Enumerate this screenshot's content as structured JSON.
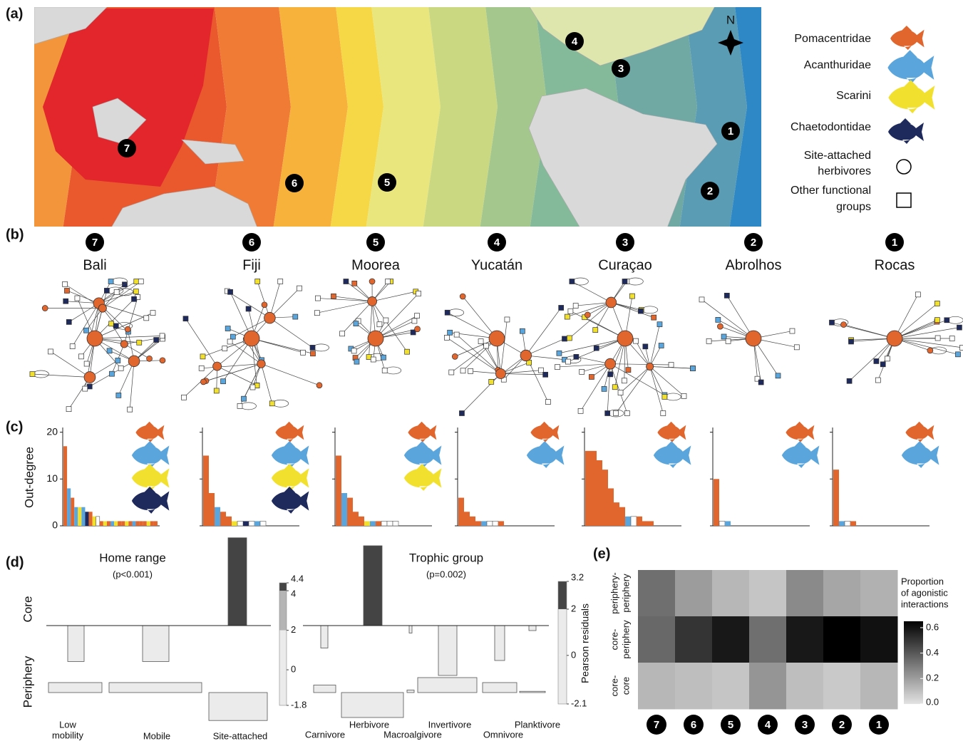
{
  "panel_labels": [
    "(a)",
    "(b)",
    "(c)",
    "(d)",
    "(e)"
  ],
  "map": {
    "sites": [
      "7",
      "6",
      "5",
      "4",
      "3",
      "2",
      "1"
    ],
    "north": "N"
  },
  "legend": {
    "items": [
      [
        "Pomacentridae"
      ],
      [
        "Acanthuridae"
      ],
      [
        "Scarini"
      ],
      [
        "Chaetodontidae"
      ],
      [
        "Site-attached",
        "herbivores"
      ],
      [
        "Other functional",
        "groups"
      ]
    ]
  },
  "networks": [
    {
      "site": "7",
      "name": "Bali"
    },
    {
      "site": "6",
      "name": "Fiji"
    },
    {
      "site": "5",
      "name": "Moorea"
    },
    {
      "site": "4",
      "name": "Yucatán"
    },
    {
      "site": "3",
      "name": "Curaçao"
    },
    {
      "site": "2",
      "name": "Abrolhos"
    },
    {
      "site": "1",
      "name": "Rocas"
    }
  ],
  "chart_data": [
    {
      "type": "bar",
      "ylabel": "Out-degree",
      "ylim": [
        0,
        21
      ],
      "yticks": [
        0,
        10,
        20
      ],
      "show_tick_labels": true,
      "values": [
        17,
        8,
        6,
        4,
        4,
        4,
        3,
        3,
        2,
        2,
        1,
        1,
        1,
        1,
        1,
        1,
        1,
        1,
        1,
        1,
        1,
        1,
        1,
        1,
        1,
        1
      ],
      "colors": [
        "#e0662e",
        "#5aa6dc",
        "#e0662e",
        "#5aa6dc",
        "#f2e02e",
        "#5aa6dc",
        "#1f2a5c",
        "#e0662e",
        "#f2e02e",
        "#ffffff",
        "#e0662e",
        "#f2e02e",
        "#e0662e",
        "#5aa6dc",
        "#f2e02e",
        "#e0662e",
        "#e0662e",
        "#f2e02e",
        "#e0662e",
        "#5aa6dc",
        "#e0662e",
        "#e0662e",
        "#e0662e",
        "#f2e02e",
        "#e0662e",
        "#e0662e"
      ]
    },
    {
      "type": "bar",
      "ylim": [
        0,
        21
      ],
      "yticks": [
        0,
        10,
        20
      ],
      "show_tick_labels": false,
      "values": [
        15,
        7,
        4,
        3,
        2,
        1,
        1,
        1,
        1,
        1,
        1
      ],
      "colors": [
        "#e0662e",
        "#e0662e",
        "#5aa6dc",
        "#e0662e",
        "#e0662e",
        "#f2e02e",
        "#ffffff",
        "#1f2a5c",
        "#ffffff",
        "#5aa6dc",
        "#ffffff"
      ]
    },
    {
      "type": "bar",
      "ylim": [
        0,
        21
      ],
      "yticks": [
        0,
        10,
        20
      ],
      "show_tick_labels": false,
      "values": [
        15,
        7,
        6,
        3,
        2,
        1,
        1,
        1,
        1,
        1,
        1
      ],
      "colors": [
        "#e0662e",
        "#5aa6dc",
        "#e0662e",
        "#e0662e",
        "#e0662e",
        "#f2e02e",
        "#5aa6dc",
        "#e0662e",
        "#ffffff",
        "#ffffff",
        "#ffffff"
      ]
    },
    {
      "type": "bar",
      "ylim": [
        0,
        21
      ],
      "yticks": [
        0,
        10,
        20
      ],
      "show_tick_labels": false,
      "values": [
        6,
        3,
        2,
        1,
        1,
        1,
        1,
        1
      ],
      "colors": [
        "#e0662e",
        "#e0662e",
        "#e0662e",
        "#e0662e",
        "#5aa6dc",
        "#ffffff",
        "#ffffff",
        "#e0662e"
      ]
    },
    {
      "type": "bar",
      "ylim": [
        0,
        21
      ],
      "yticks": [
        0,
        10,
        20
      ],
      "show_tick_labels": false,
      "values": [
        16,
        16,
        14,
        12,
        8,
        5,
        4,
        2,
        2,
        2,
        1,
        1
      ],
      "colors": [
        "#e0662e",
        "#e0662e",
        "#e0662e",
        "#e0662e",
        "#e0662e",
        "#e0662e",
        "#e0662e",
        "#5aa6dc",
        "#ffffff",
        "#e0662e",
        "#e0662e",
        "#e0662e"
      ]
    },
    {
      "type": "bar",
      "ylim": [
        0,
        21
      ],
      "yticks": [
        0,
        10,
        20
      ],
      "show_tick_labels": false,
      "values": [
        10,
        1,
        1
      ],
      "colors": [
        "#e0662e",
        "#ffffff",
        "#5aa6dc"
      ]
    },
    {
      "type": "bar",
      "ylim": [
        0,
        21
      ],
      "yticks": [
        0,
        10,
        20
      ],
      "show_tick_labels": false,
      "values": [
        12,
        1,
        1,
        1
      ],
      "colors": [
        "#e0662e",
        "#5aa6dc",
        "#ffffff",
        "#e0662e"
      ]
    },
    {
      "type": "residual",
      "title": "Home range",
      "subtitle": "(p<0.001)",
      "categories": [
        [
          "Low",
          "mobility"
        ],
        [
          "Mobile"
        ],
        [
          "Site-attached"
        ]
      ],
      "series": [
        {
          "name": "Core",
          "values": [
            -1.8,
            -1.8,
            4.4
          ],
          "colors": [
            "#ebebeb",
            "#ebebeb",
            "#444444"
          ]
        },
        {
          "name": "Periphery",
          "values": [
            0.5,
            0.5,
            -1.4
          ],
          "colors": [
            "#ebebeb",
            "#ebebeb",
            "#ebebeb"
          ]
        }
      ],
      "colorbar": {
        "ticks": [
          -1.8,
          0,
          2,
          4,
          4.4
        ],
        "colors": [
          "#ebebeb",
          "#ebebeb",
          "#b5b5b5",
          "#444444"
        ]
      }
    },
    {
      "type": "residual",
      "title": "Trophic group",
      "subtitle": "(p=0.002)",
      "categories": [
        [
          "Carnivore"
        ],
        [
          "Herbivore"
        ],
        [
          "Macroalgivore"
        ],
        [
          "Invertivore"
        ],
        [
          "Omnivore"
        ],
        [
          "Planktivore"
        ]
      ],
      "series": [
        {
          "values": [
            -0.9,
            3.2,
            -0.3,
            -2.0,
            -1.4,
            -0.2
          ],
          "colors": [
            "#ebebeb",
            "#444444",
            "#ebebeb",
            "#ebebeb",
            "#ebebeb",
            "#ebebeb"
          ]
        },
        {
          "values": [
            0.3,
            -1.0,
            0.1,
            0.6,
            0.4,
            0.05
          ],
          "colors": [
            "#ebebeb",
            "#ebebeb",
            "#ebebeb",
            "#ebebeb",
            "#ebebeb",
            "#ebebeb"
          ]
        }
      ],
      "colorbar": {
        "label": "Pearson residuals",
        "ticks": [
          -2.1,
          0,
          2,
          3.2
        ],
        "colors": [
          "#ebebeb",
          "#ebebeb",
          "#444444"
        ]
      }
    },
    {
      "type": "heatmap",
      "categories": [
        "7",
        "6",
        "5",
        "4",
        "3",
        "2",
        "1"
      ],
      "y_categories": [
        [
          "periphery-",
          "periphery"
        ],
        [
          "core-",
          "periphery"
        ],
        [
          "core-",
          "core"
        ]
      ],
      "values": [
        [
          0.33,
          0.2,
          0.12,
          0.08,
          0.25,
          0.17,
          0.14
        ],
        [
          0.35,
          0.5,
          0.58,
          0.33,
          0.58,
          0.65,
          0.6
        ],
        [
          0.12,
          0.1,
          0.08,
          0.22,
          0.1,
          0.07,
          0.12
        ]
      ],
      "zlim": [
        0,
        0.65
      ],
      "zticks": [
        {
          "value": 0,
          "label": "0.0"
        },
        0.2,
        0.4,
        0.6
      ],
      "zlabel": [
        "Proportion",
        "of agonistic",
        "interactions"
      ]
    }
  ]
}
